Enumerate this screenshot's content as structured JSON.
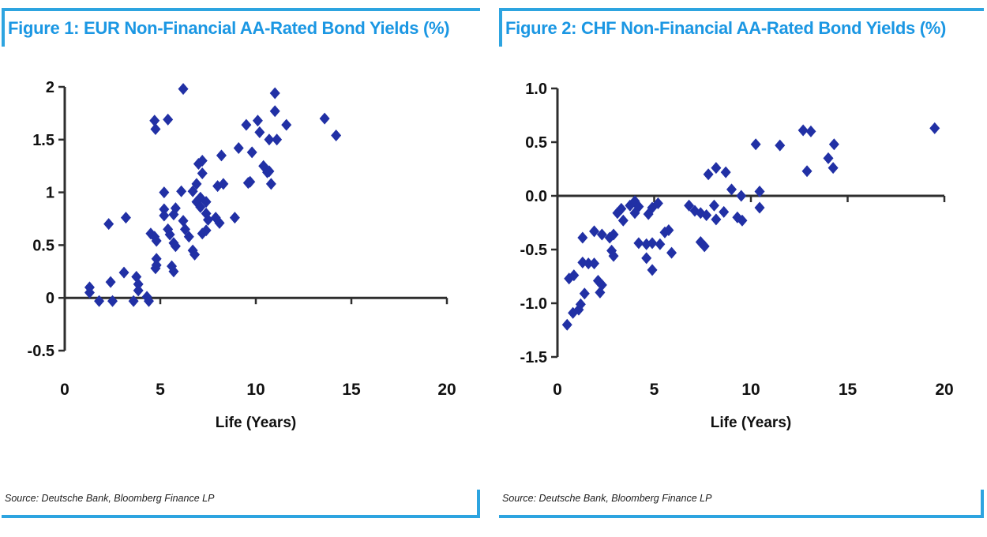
{
  "colors": {
    "accent_blue": "#1b97e3",
    "rule_blue": "#2da4e0",
    "marker_blue": "#2130a5",
    "axis_dark": "#2e2e2e",
    "tick_label": "#111111",
    "source_text": "#1d1d1d"
  },
  "panels": [
    {
      "id": "eur",
      "title": "Figure 1: EUR Non-Financial AA-Rated Bond Yields (%)",
      "source": "Source: Deutsche Bank, Bloomberg Finance LP"
    },
    {
      "id": "chf",
      "title": "Figure 2: CHF Non-Financial AA-Rated Bond Yields (%)",
      "source": "Source: Deutsche Bank, Bloomberg Finance LP"
    }
  ],
  "chart_data": [
    {
      "type": "scatter",
      "title": "Figure 1: EUR Non-Financial AA-Rated Bond Yields (%)",
      "xlabel": "Life (Years)",
      "ylabel": "",
      "xlim": [
        0,
        20
      ],
      "ylim": [
        -0.5,
        2
      ],
      "xticks": [
        0,
        5,
        10,
        15,
        20
      ],
      "xtick_labels": [
        "0",
        "5",
        "10",
        "15",
        "20"
      ],
      "yticks": [
        2,
        1.5,
        1,
        0.5,
        0,
        -0.5
      ],
      "ytick_labels": [
        "2",
        "1.5",
        "1",
        "0.5",
        "0",
        "-0.5"
      ],
      "grid": false,
      "legend": "none",
      "marker": "diamond",
      "points": [
        [
          6.2,
          1.98
        ],
        [
          4.7,
          1.68
        ],
        [
          4.75,
          1.6
        ],
        [
          5.4,
          1.69
        ],
        [
          11.0,
          1.94
        ],
        [
          11.0,
          1.77
        ],
        [
          9.5,
          1.64
        ],
        [
          10.1,
          1.68
        ],
        [
          10.2,
          1.57
        ],
        [
          11.6,
          1.64
        ],
        [
          13.6,
          1.7
        ],
        [
          14.2,
          1.54
        ],
        [
          10.7,
          1.5
        ],
        [
          11.1,
          1.5
        ],
        [
          9.1,
          1.42
        ],
        [
          9.8,
          1.38
        ],
        [
          8.2,
          1.35
        ],
        [
          7.0,
          1.27
        ],
        [
          7.2,
          1.3
        ],
        [
          7.2,
          1.18
        ],
        [
          10.4,
          1.25
        ],
        [
          10.6,
          1.19
        ],
        [
          10.7,
          1.2
        ],
        [
          9.7,
          1.1
        ],
        [
          10.8,
          1.08
        ],
        [
          6.9,
          1.08
        ],
        [
          8.0,
          1.06
        ],
        [
          8.3,
          1.08
        ],
        [
          9.6,
          1.09
        ],
        [
          5.2,
          1.0
        ],
        [
          6.1,
          1.01
        ],
        [
          6.7,
          1.01
        ],
        [
          7.1,
          0.95
        ],
        [
          6.9,
          0.91
        ],
        [
          7.4,
          0.91
        ],
        [
          7.1,
          0.86
        ],
        [
          7.4,
          0.8
        ],
        [
          7.5,
          0.74
        ],
        [
          7.9,
          0.76
        ],
        [
          8.1,
          0.71
        ],
        [
          8.9,
          0.76
        ],
        [
          5.2,
          0.84
        ],
        [
          5.2,
          0.78
        ],
        [
          5.7,
          0.79
        ],
        [
          5.8,
          0.85
        ],
        [
          5.4,
          0.65
        ],
        [
          5.5,
          0.6
        ],
        [
          6.2,
          0.73
        ],
        [
          6.3,
          0.65
        ],
        [
          6.5,
          0.58
        ],
        [
          6.7,
          0.45
        ],
        [
          6.8,
          0.41
        ],
        [
          7.2,
          0.61
        ],
        [
          7.4,
          0.64
        ],
        [
          5.7,
          0.52
        ],
        [
          5.8,
          0.49
        ],
        [
          5.6,
          0.3
        ],
        [
          5.7,
          0.25
        ],
        [
          4.5,
          0.61
        ],
        [
          4.7,
          0.58
        ],
        [
          4.8,
          0.54
        ],
        [
          4.8,
          0.37
        ],
        [
          4.8,
          0.31
        ],
        [
          4.75,
          0.28
        ],
        [
          2.3,
          0.7
        ],
        [
          3.2,
          0.76
        ],
        [
          1.3,
          0.1
        ],
        [
          1.3,
          0.05
        ],
        [
          1.8,
          -0.03
        ],
        [
          2.4,
          0.15
        ],
        [
          2.5,
          -0.03
        ],
        [
          3.1,
          0.24
        ],
        [
          3.6,
          -0.03
        ],
        [
          3.75,
          0.2
        ],
        [
          3.85,
          0.13
        ],
        [
          3.85,
          0.07
        ],
        [
          4.3,
          0.01
        ],
        [
          4.4,
          -0.03
        ]
      ]
    },
    {
      "type": "scatter",
      "title": "Figure 2: CHF Non-Financial AA-Rated Bond Yields (%)",
      "xlabel": "Life (Years)",
      "ylabel": "",
      "xlim": [
        0,
        20
      ],
      "ylim": [
        -1.5,
        1.0
      ],
      "xticks": [
        0,
        5,
        10,
        15,
        20
      ],
      "xtick_labels": [
        "0",
        "5",
        "10",
        "15",
        "20"
      ],
      "yticks": [
        1.0,
        0.5,
        0.0,
        -0.5,
        -1.0,
        -1.5
      ],
      "ytick_labels": [
        "1.0",
        "0.5",
        "0.0",
        "-0.5",
        "-1.0",
        "-1.5"
      ],
      "grid": false,
      "legend": "none",
      "marker": "diamond",
      "points": [
        [
          0.5,
          -1.2
        ],
        [
          0.8,
          -1.09
        ],
        [
          1.1,
          -1.06
        ],
        [
          1.2,
          -1.01
        ],
        [
          1.4,
          -0.91
        ],
        [
          0.6,
          -0.77
        ],
        [
          0.85,
          -0.74
        ],
        [
          1.3,
          -0.62
        ],
        [
          1.6,
          -0.63
        ],
        [
          1.9,
          -0.63
        ],
        [
          2.1,
          -0.79
        ],
        [
          2.3,
          -0.83
        ],
        [
          2.2,
          -0.9
        ],
        [
          1.3,
          -0.39
        ],
        [
          1.9,
          -0.33
        ],
        [
          2.3,
          -0.36
        ],
        [
          2.7,
          -0.39
        ],
        [
          2.9,
          -0.36
        ],
        [
          2.8,
          -0.51
        ],
        [
          2.9,
          -0.56
        ],
        [
          3.1,
          -0.16
        ],
        [
          3.3,
          -0.12
        ],
        [
          3.4,
          -0.23
        ],
        [
          3.75,
          -0.09
        ],
        [
          4.0,
          -0.05
        ],
        [
          4.2,
          -0.1
        ],
        [
          4.0,
          -0.16
        ],
        [
          4.7,
          -0.17
        ],
        [
          4.9,
          -0.11
        ],
        [
          5.2,
          -0.07
        ],
        [
          4.2,
          -0.44
        ],
        [
          4.6,
          -0.45
        ],
        [
          4.9,
          -0.44
        ],
        [
          5.3,
          -0.45
        ],
        [
          4.6,
          -0.58
        ],
        [
          4.9,
          -0.69
        ],
        [
          5.55,
          -0.34
        ],
        [
          5.75,
          -0.32
        ],
        [
          5.9,
          -0.53
        ],
        [
          6.8,
          -0.09
        ],
        [
          7.1,
          -0.14
        ],
        [
          7.4,
          -0.16
        ],
        [
          7.7,
          -0.18
        ],
        [
          7.4,
          -0.43
        ],
        [
          7.6,
          -0.47
        ],
        [
          8.1,
          -0.09
        ],
        [
          8.6,
          -0.15
        ],
        [
          8.2,
          -0.22
        ],
        [
          9.3,
          -0.2
        ],
        [
          9.55,
          -0.23
        ],
        [
          10.45,
          -0.11
        ],
        [
          7.8,
          0.2
        ],
        [
          8.2,
          0.26
        ],
        [
          8.7,
          0.22
        ],
        [
          9.0,
          0.06
        ],
        [
          9.5,
          0.0
        ],
        [
          10.45,
          0.04
        ],
        [
          10.25,
          0.48
        ],
        [
          11.5,
          0.47
        ],
        [
          12.7,
          0.61
        ],
        [
          13.1,
          0.6
        ],
        [
          14.3,
          0.48
        ],
        [
          14.0,
          0.35
        ],
        [
          14.25,
          0.26
        ],
        [
          12.9,
          0.23
        ],
        [
          19.5,
          0.63
        ]
      ]
    }
  ]
}
